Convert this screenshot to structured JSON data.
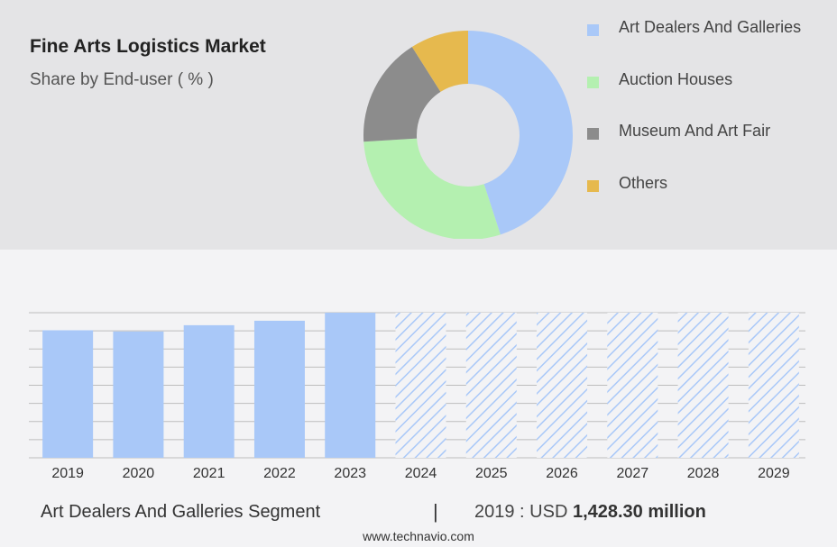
{
  "header": {
    "title": "Fine Arts Logistics Market",
    "subtitle": "Share by End-user ( % )"
  },
  "colors": {
    "top_panel": "#e4e4e6",
    "bar": "#a9c8f8",
    "hatch": "#a9c8f8",
    "grid": "#bdbdbd"
  },
  "chart_data": [
    {
      "type": "pie",
      "variant": "donut",
      "legend_position": "right",
      "slices": [
        {
          "label": "Art Dealers And Galleries",
          "value": 45,
          "color": "#a9c8f8"
        },
        {
          "label": "Auction Houses",
          "value": 29,
          "color": "#b4f0b0"
        },
        {
          "label": "Museum And Art Fair",
          "value": 17,
          "color": "#8c8c8c"
        },
        {
          "label": "Others",
          "value": 9,
          "color": "#e6b94e"
        }
      ]
    },
    {
      "type": "bar",
      "categories": [
        "2019",
        "2020",
        "2021",
        "2022",
        "2023",
        "2024",
        "2025",
        "2026",
        "2027",
        "2028",
        "2029"
      ],
      "values": [
        1428.3,
        1415,
        1485,
        1535,
        1625,
        null,
        null,
        null,
        null,
        null,
        null
      ],
      "forecast_categories": [
        "2024",
        "2025",
        "2026",
        "2027",
        "2028",
        "2029"
      ],
      "ylim": [
        0,
        1625
      ],
      "grid": true
    }
  ],
  "footer": {
    "segment": "Art Dealers And Galleries Segment",
    "separator": "|",
    "value_prefix": "2019 : USD",
    "value_bold": "1,428.30 million"
  },
  "source": "www.technavio.com"
}
